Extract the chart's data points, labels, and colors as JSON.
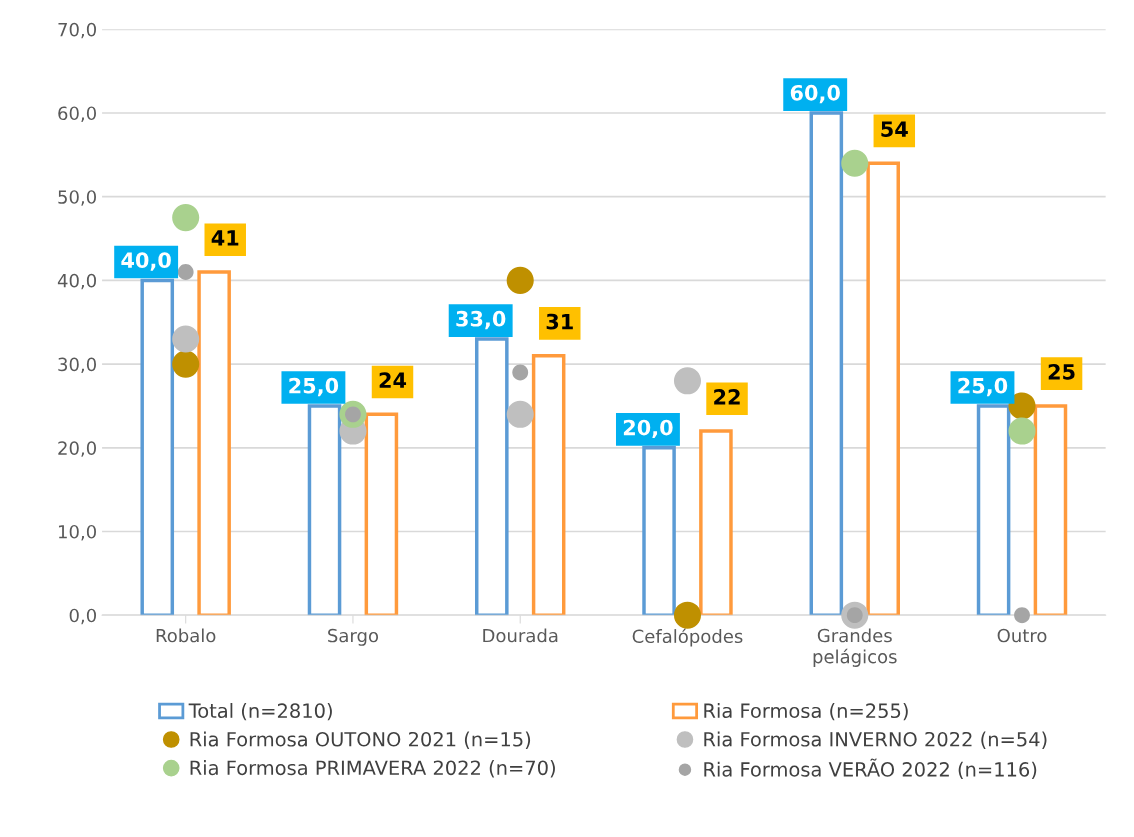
{
  "chart_data": {
    "type": "bar",
    "categories": [
      "Robalo",
      "Sargo",
      "Dourada",
      "Cefalópodes",
      "Grandes\npelágicos",
      "Outro"
    ],
    "series": [
      {
        "name": "Total (n=2810)",
        "color": "#5b9bd5",
        "values": [
          40,
          25,
          33,
          20,
          60,
          25
        ],
        "value_labels": [
          "40,0",
          "25,0",
          "33,0",
          "20,0",
          "60,0",
          "25,0"
        ]
      },
      {
        "name": "Ria Formosa (n=255)",
        "color": "#ff9a3c",
        "values": [
          41,
          24,
          31,
          22,
          54,
          25
        ],
        "value_labels": [
          "41",
          "24",
          "31",
          "22",
          "54",
          "25"
        ]
      },
      {
        "name": "Ria Formosa OUTONO 2021 (n=15)",
        "type": "scatter",
        "color": "#bf9000",
        "values": [
          30,
          null,
          40,
          0,
          null,
          25
        ]
      },
      {
        "name": "Ria Formosa INVERNO 2022 (n=54)",
        "type": "scatter",
        "color": "#bfbfbf",
        "values": [
          33,
          22,
          24,
          28,
          0,
          null
        ]
      },
      {
        "name": "Ria Formosa PRIMAVERA 2022 (n=70)",
        "type": "scatter",
        "color": "#a9d18e",
        "values": [
          47.5,
          24,
          null,
          null,
          54,
          22
        ]
      },
      {
        "name": "Ria Formosa VERÃO 2022 (n=116)",
        "type": "scatter",
        "color": "#a5a5a5",
        "values": [
          41,
          24,
          29,
          null,
          0,
          0
        ]
      }
    ],
    "ylim": [
      0,
      70
    ],
    "yticks": [
      {
        "value": 0,
        "label": "0,0"
      },
      {
        "value": 10,
        "label": "10,0"
      },
      {
        "value": 20,
        "label": "20,0"
      },
      {
        "value": 30,
        "label": "30,0"
      },
      {
        "value": 40,
        "label": "40,0"
      },
      {
        "value": 50,
        "label": "50,0"
      },
      {
        "value": 60,
        "label": "60,0"
      },
      {
        "value": 70,
        "label": "70,0"
      }
    ],
    "grid": "y",
    "legend": "bottom",
    "marker": "circle"
  }
}
